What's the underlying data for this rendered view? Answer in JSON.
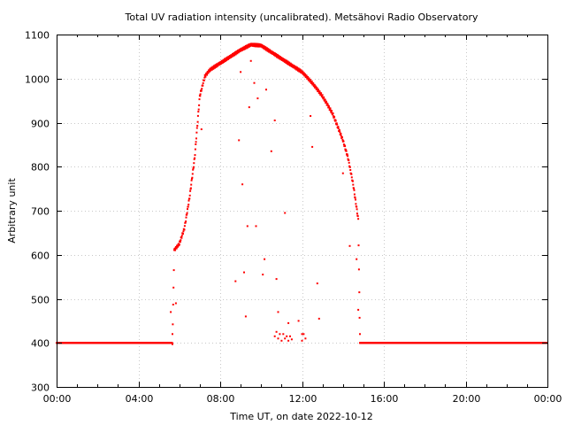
{
  "chart_data": {
    "type": "scatter",
    "title": "Total UV radiation intensity (uncalibrated). Metsähovi Radio Observatory",
    "xlabel": "Time UT, on date 2022-10-12",
    "ylabel": "Arbitrary unit",
    "xlim": [
      "00:00",
      "24:00"
    ],
    "ylim": [
      300,
      1100
    ],
    "x_ticks": [
      "00:00",
      "04:00",
      "08:00",
      "12:00",
      "16:00",
      "20:00",
      "00:00"
    ],
    "y_ticks": [
      "300",
      "400",
      "500",
      "600",
      "700",
      "800",
      "900",
      "1000",
      "1100"
    ],
    "grid": true,
    "color": "#ff0000",
    "series": [
      {
        "curve": [
          [
            "00:00",
            400
          ],
          [
            "05:40",
            400
          ],
          [
            "05:45",
            610
          ],
          [
            "06:00",
            625
          ],
          [
            "06:15",
            660
          ],
          [
            "06:30",
            730
          ],
          [
            "06:45",
            820
          ],
          [
            "07:00",
            960
          ],
          [
            "07:15",
            1005
          ],
          [
            "07:30",
            1020
          ],
          [
            "08:00",
            1035
          ],
          [
            "08:30",
            1050
          ],
          [
            "09:00",
            1065
          ],
          [
            "09:30",
            1077
          ],
          [
            "10:00",
            1075
          ],
          [
            "10:30",
            1060
          ],
          [
            "11:00",
            1045
          ],
          [
            "11:30",
            1030
          ],
          [
            "12:00",
            1015
          ],
          [
            "12:30",
            990
          ],
          [
            "13:00",
            960
          ],
          [
            "13:30",
            920
          ],
          [
            "14:00",
            860
          ],
          [
            "14:15",
            820
          ],
          [
            "14:30",
            760
          ],
          [
            "14:45",
            680
          ],
          [
            "14:50",
            400
          ],
          [
            "24:00",
            400
          ]
        ],
        "scattered": [
          [
            "05:35",
            470
          ],
          [
            "05:40",
            420
          ],
          [
            "05:50",
            490
          ],
          [
            "07:05",
            885
          ],
          [
            "08:45",
            540
          ],
          [
            "08:55",
            860
          ],
          [
            "09:00",
            1015
          ],
          [
            "09:05",
            760
          ],
          [
            "09:10",
            560
          ],
          [
            "09:15",
            460
          ],
          [
            "09:20",
            665
          ],
          [
            "09:25",
            935
          ],
          [
            "09:30",
            1040
          ],
          [
            "09:40",
            990
          ],
          [
            "09:45",
            665
          ],
          [
            "09:50",
            955
          ],
          [
            "10:05",
            555
          ],
          [
            "10:10",
            590
          ],
          [
            "10:15",
            975
          ],
          [
            "10:30",
            835
          ],
          [
            "10:40",
            905
          ],
          [
            "10:45",
            545
          ],
          [
            "10:50",
            470
          ],
          [
            "11:10",
            695
          ],
          [
            "11:15",
            1040
          ],
          [
            "11:20",
            445
          ],
          [
            "11:50",
            450
          ],
          [
            "12:00",
            420
          ],
          [
            "12:10",
            410
          ],
          [
            "12:25",
            915
          ],
          [
            "12:30",
            845
          ],
          [
            "12:45",
            535
          ],
          [
            "12:50",
            455
          ],
          [
            "14:00",
            785
          ],
          [
            "14:20",
            620
          ],
          [
            "14:40",
            590
          ],
          [
            "14:45",
            475
          ],
          [
            "14:50",
            420
          ],
          [
            "10:40",
            415
          ],
          [
            "10:45",
            425
          ],
          [
            "10:50",
            410
          ],
          [
            "10:55",
            420
          ],
          [
            "11:00",
            405
          ],
          [
            "11:05",
            420
          ],
          [
            "11:10",
            410
          ],
          [
            "11:15",
            415
          ],
          [
            "11:20",
            405
          ],
          [
            "11:25",
            415
          ],
          [
            "11:30",
            408
          ],
          [
            "12:00",
            405
          ],
          [
            "12:05",
            420
          ]
        ]
      }
    ]
  }
}
